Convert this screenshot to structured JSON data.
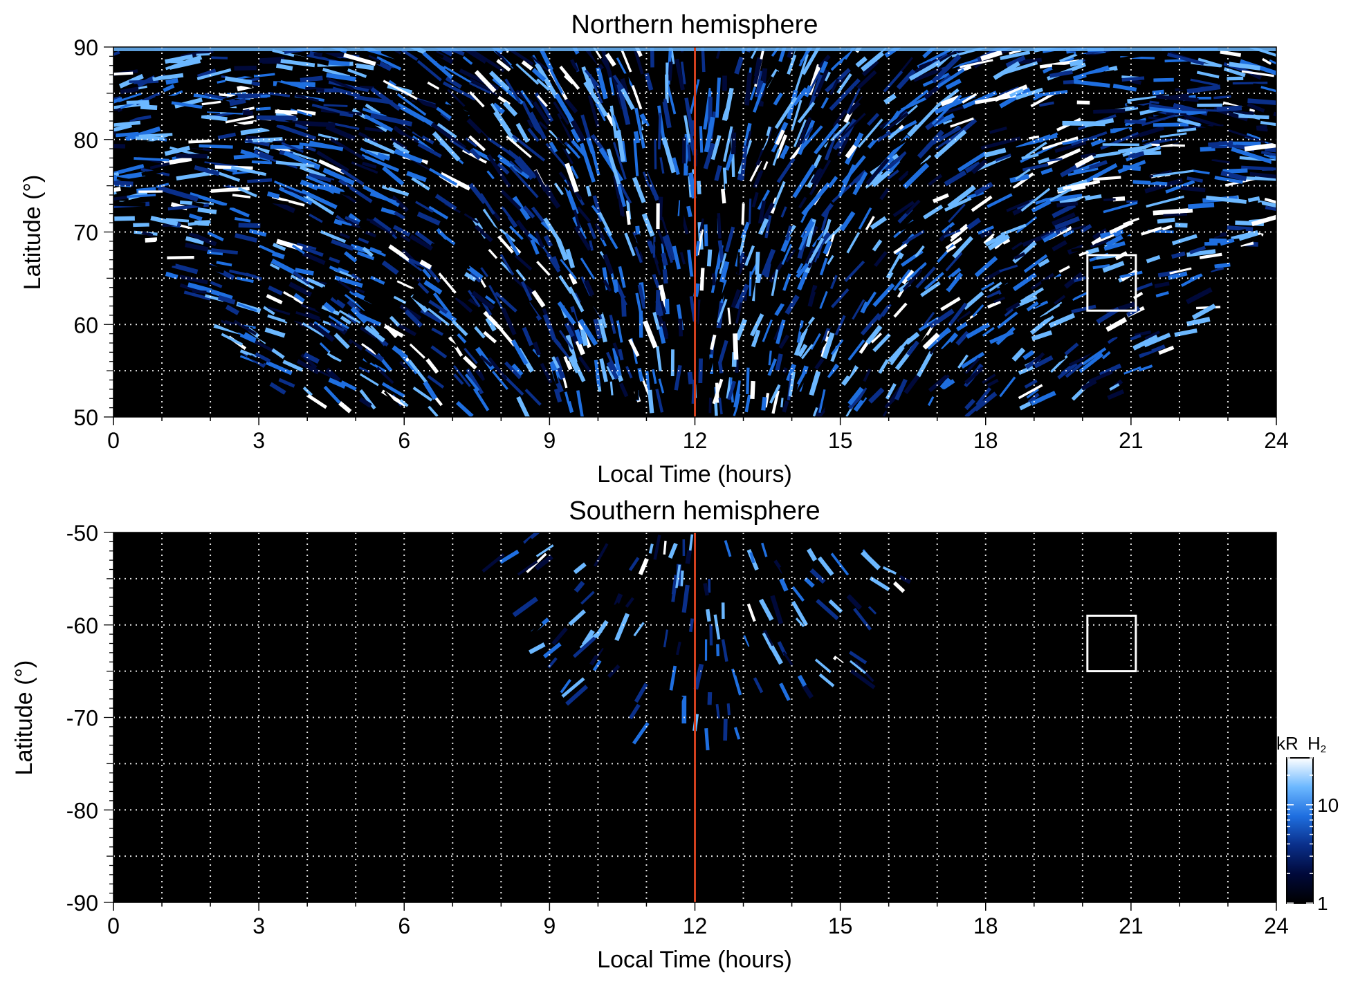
{
  "colors": {
    "background": "#000000",
    "noon_line": "#d2401e",
    "grid": "#ffffff",
    "box": "#ffffff",
    "colormap": [
      "#000000",
      "#00093a",
      "#0a2f8a",
      "#1f6fe0",
      "#6cb8ff",
      "#ffffff"
    ]
  },
  "colorbar": {
    "label_main": "kR",
    "label_species": "H",
    "label_sub": "2",
    "ticks": [
      "10",
      "1"
    ],
    "range": [
      1,
      30
    ],
    "scale": "log"
  },
  "chart_data": [
    {
      "type": "heatmap",
      "title": "Northern hemisphere",
      "xlabel": "Local Time (hours)",
      "ylabel": "Latitude (°)",
      "xlim": [
        0,
        24
      ],
      "ylim": [
        50,
        90
      ],
      "xticks": [
        "0",
        "3",
        "6",
        "9",
        "12",
        "15",
        "18",
        "21",
        "24"
      ],
      "yticks": [
        "90",
        "80",
        "70",
        "60",
        "50"
      ],
      "noon_line_x": 12,
      "highlight_box": {
        "x": [
          20.1,
          21.1
        ],
        "y": [
          61.5,
          67.5
        ]
      },
      "coverage": {
        "min_lat_at_noon": 50,
        "lat_edge_at_0h": 74,
        "lat_edge_at_24h": 74,
        "lat_edge_at_5h": 50,
        "lat_edge_at_19_5h": 50
      }
    },
    {
      "type": "heatmap",
      "title": "Southern hemisphere",
      "xlabel": "Local Time (hours)",
      "ylabel": "Latitude (°)",
      "xlim": [
        0,
        24
      ],
      "ylim": [
        -90,
        -50
      ],
      "xticks": [
        "0",
        "3",
        "6",
        "9",
        "12",
        "15",
        "18",
        "21",
        "24"
      ],
      "yticks": [
        "-50",
        "-60",
        "-70",
        "-80",
        "-90"
      ],
      "noon_line_x": 12,
      "highlight_box": {
        "x": [
          20.1,
          21.1
        ],
        "y": [
          -65,
          -59
        ]
      },
      "coverage": {
        "center_lt": 12.2,
        "half_width_lt": 4.4,
        "max_depth_lat": -72
      }
    }
  ]
}
